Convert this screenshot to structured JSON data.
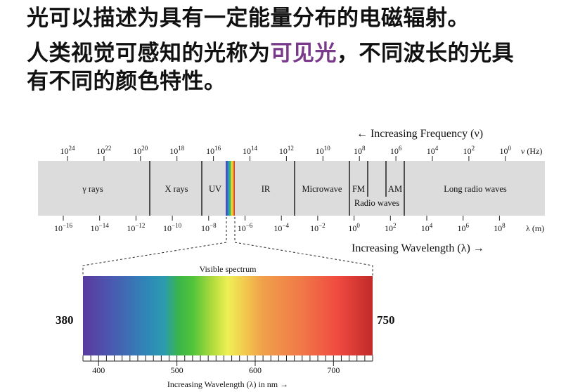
{
  "heading": {
    "line1": "光可以描述为具有一定能量分布的电磁辐射。",
    "line2_before": "人类视觉可感知的光称为",
    "line2_highlight": "可见光",
    "line2_after": "，不同波长的光具",
    "line3": "有不同的颜色特性。",
    "highlight_color": "#7a3a8c"
  },
  "spectrum": {
    "frequency_title": "← Increasing Frequency (ν)",
    "frequency_unit": "ν (Hz)",
    "frequency_ticks": [
      {
        "base": "10",
        "exp": "24"
      },
      {
        "base": "10",
        "exp": "22"
      },
      {
        "base": "10",
        "exp": "20"
      },
      {
        "base": "10",
        "exp": "18"
      },
      {
        "base": "10",
        "exp": "16"
      },
      {
        "base": "10",
        "exp": "14"
      },
      {
        "base": "10",
        "exp": "12"
      },
      {
        "base": "10",
        "exp": "10"
      },
      {
        "base": "10",
        "exp": "8"
      },
      {
        "base": "10",
        "exp": "6"
      },
      {
        "base": "10",
        "exp": "4"
      },
      {
        "base": "10",
        "exp": "2"
      },
      {
        "base": "10",
        "exp": "0"
      }
    ],
    "wavelength_unit": "λ (m)",
    "wavelength_ticks": [
      {
        "base": "10",
        "exp": "−16"
      },
      {
        "base": "10",
        "exp": "−14"
      },
      {
        "base": "10",
        "exp": "−12"
      },
      {
        "base": "10",
        "exp": "−10"
      },
      {
        "base": "10",
        "exp": "−8"
      },
      {
        "base": "10",
        "exp": "−6"
      },
      {
        "base": "10",
        "exp": "−4"
      },
      {
        "base": "10",
        "exp": "−2"
      },
      {
        "base": "10",
        "exp": "0"
      },
      {
        "base": "10",
        "exp": "2"
      },
      {
        "base": "10",
        "exp": "4"
      },
      {
        "base": "10",
        "exp": "6"
      },
      {
        "base": "10",
        "exp": "8"
      }
    ],
    "wavelength_title": "Increasing Wavelength (λ) →",
    "bands": [
      "γ rays",
      "X rays",
      "UV",
      "IR",
      "Microwave",
      "FM",
      "AM",
      "Radio waves",
      "Long radio waves"
    ],
    "band_color": "#dcdcdc"
  },
  "visible": {
    "title": "Visible spectrum",
    "left_value": "380",
    "right_value": "750",
    "left_color": "#7b4aa0",
    "right_color": "#e0202a",
    "axis_ticks": [
      "400",
      "500",
      "600",
      "700"
    ],
    "axis_title": "Increasing Wavelength (λ) in nm →"
  }
}
